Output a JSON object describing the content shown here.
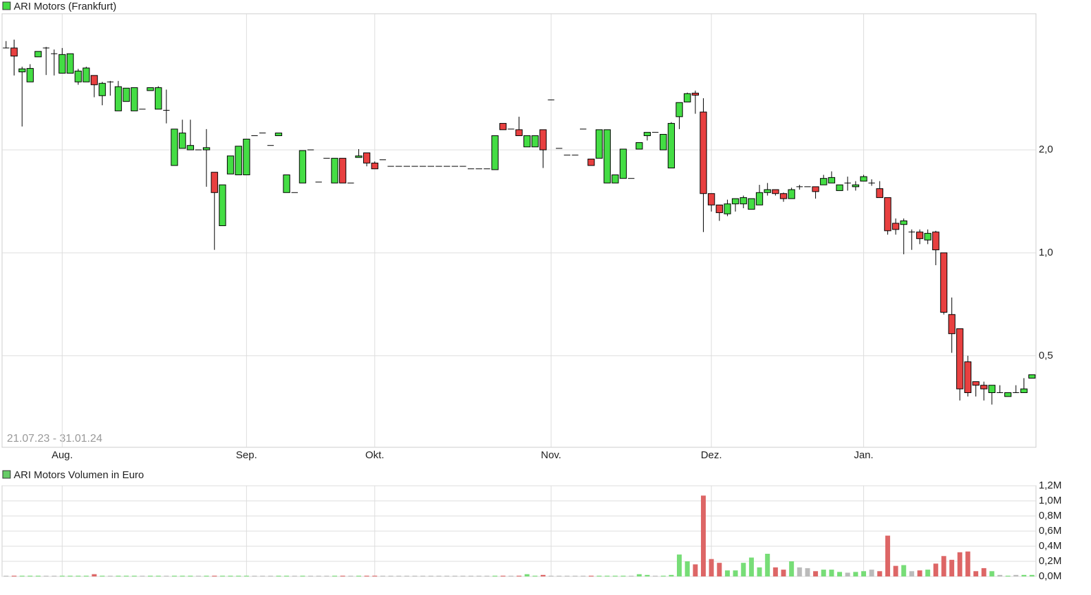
{
  "chart_data": [
    {
      "type": "candlestick",
      "title": "ARI Motors (Frankfurt)",
      "legend_color": "#44dd44",
      "annotation": "21.07.23 - 31.01.24",
      "up_color": "#44dd44",
      "down_color": "#e84040",
      "log_scale": true,
      "grid": true,
      "xlim": [
        -0.5,
        128.5
      ],
      "xticks": [
        {
          "value": 7,
          "label": "Aug."
        },
        {
          "value": 30,
          "label": "Sep."
        },
        {
          "value": 46,
          "label": "Okt."
        },
        {
          "value": 68,
          "label": "Nov."
        },
        {
          "value": 88,
          "label": "Dez."
        },
        {
          "value": 107,
          "label": "Jan."
        }
      ],
      "ylim": [
        0.27,
        5.0
      ],
      "yticks": [
        {
          "value": 0.5,
          "label": "0,5"
        },
        {
          "value": 1,
          "label": "1,0"
        },
        {
          "value": 2,
          "label": "2,0"
        }
      ],
      "open": [
        3.97,
        3.97,
        3.38,
        3.16,
        3.74,
        3.97,
        3.82,
        3.35,
        3.35,
        3.16,
        3.16,
        3.3,
        2.88,
        3.16,
        2.6,
        2.77,
        2.6,
        2.63,
        2.98,
        2.63,
        2.61,
        1.8,
        2.02,
        2.0,
        2.0,
        2.0,
        1.72,
        1.2,
        1.7,
        1.69,
        1.69,
        2.2,
        2.24,
        2.06,
        2.2,
        1.5,
        1.5,
        1.6,
        2.0,
        1.61,
        1.89,
        1.6,
        1.89,
        1.6,
        1.9,
        1.96,
        1.83,
        1.87,
        1.79,
        1.79,
        1.79,
        1.79,
        1.79,
        1.79,
        1.79,
        1.79,
        1.79,
        1.79,
        1.76,
        1.76,
        1.76,
        1.75,
        2.39,
        2.3,
        2.29,
        2.04,
        2.04,
        2.29,
        2.8,
        2.02,
        1.93,
        1.93,
        2.3,
        1.88,
        1.89,
        1.6,
        1.6,
        1.65,
        1.65,
        2.01,
        2.2,
        2.25,
        2.0,
        1.77,
        2.5,
        2.76,
        2.93,
        2.58,
        1.49,
        1.38,
        1.3,
        1.39,
        1.39,
        1.34,
        1.38,
        1.5,
        1.53,
        1.49,
        1.44,
        1.56,
        1.56,
        1.56,
        1.58,
        1.6,
        1.52,
        1.6,
        1.56,
        1.62,
        1.6,
        1.54,
        1.45,
        1.22,
        1.21,
        1.15,
        1.15,
        1.09,
        1.15,
        1.0,
        0.66,
        0.6,
        0.48,
        0.42,
        0.41,
        0.39,
        0.39,
        0.38,
        0.39,
        0.39,
        0.43
      ],
      "high": [
        4.16,
        4.2,
        3.5,
        3.56,
        3.88,
        4.0,
        3.93,
        3.97,
        3.82,
        3.45,
        3.5,
        3.3,
        3.16,
        3.18,
        3.18,
        3.03,
        3.04,
        2.63,
        3.04,
        3.07,
        3.0,
        2.3,
        2.45,
        2.45,
        2.0,
        2.3,
        1.72,
        1.58,
        1.92,
        2.05,
        2.15,
        2.2,
        2.24,
        2.06,
        2.24,
        1.69,
        1.5,
        1.99,
        2.0,
        1.61,
        1.89,
        1.89,
        1.89,
        1.6,
        2.01,
        1.96,
        1.85,
        1.87,
        1.79,
        1.79,
        1.79,
        1.79,
        1.79,
        1.79,
        1.79,
        1.79,
        1.79,
        1.79,
        1.76,
        1.76,
        1.76,
        2.2,
        2.39,
        2.3,
        2.5,
        2.2,
        2.2,
        2.29,
        2.8,
        2.02,
        1.93,
        1.93,
        2.3,
        1.88,
        2.29,
        2.29,
        1.69,
        2.01,
        1.65,
        2.1,
        2.25,
        2.25,
        2.22,
        2.41,
        2.75,
        2.94,
        2.98,
        2.83,
        1.49,
        1.38,
        1.43,
        1.44,
        1.47,
        1.44,
        1.58,
        1.6,
        1.53,
        1.5,
        1.55,
        1.58,
        1.56,
        1.56,
        1.69,
        1.73,
        1.58,
        1.67,
        1.62,
        1.69,
        1.64,
        1.62,
        1.45,
        1.26,
        1.26,
        1.17,
        1.17,
        1.17,
        1.16,
        1.0,
        0.74,
        0.6,
        0.5,
        0.42,
        0.42,
        0.41,
        0.41,
        0.39,
        0.41,
        0.43,
        0.44
      ],
      "low": [
        3.97,
        3.3,
        2.34,
        3.16,
        3.74,
        3.31,
        3.3,
        3.35,
        3.35,
        3.1,
        3.16,
        2.85,
        2.7,
        2.88,
        2.6,
        2.77,
        2.6,
        2.63,
        2.98,
        2.63,
        2.39,
        1.8,
        2.02,
        2.0,
        2.0,
        1.56,
        1.02,
        1.2,
        1.7,
        1.69,
        1.69,
        2.2,
        2.24,
        2.06,
        2.2,
        1.5,
        1.5,
        1.6,
        2.0,
        1.61,
        1.89,
        1.6,
        1.6,
        1.6,
        1.9,
        1.79,
        1.76,
        1.87,
        1.79,
        1.79,
        1.79,
        1.79,
        1.79,
        1.79,
        1.79,
        1.79,
        1.79,
        1.79,
        1.76,
        1.76,
        1.76,
        1.75,
        2.29,
        2.3,
        2.2,
        2.04,
        2.04,
        1.77,
        2.8,
        2.02,
        1.93,
        1.93,
        2.3,
        1.8,
        1.89,
        1.6,
        1.6,
        1.65,
        1.65,
        2.01,
        2.13,
        2.25,
        2.0,
        1.77,
        2.3,
        2.76,
        2.55,
        1.15,
        1.32,
        1.24,
        1.28,
        1.32,
        1.35,
        1.34,
        1.38,
        1.47,
        1.47,
        1.41,
        1.44,
        1.53,
        1.56,
        1.44,
        1.58,
        1.6,
        1.52,
        1.52,
        1.52,
        1.62,
        1.57,
        1.45,
        1.13,
        1.13,
        0.99,
        1.02,
        1.06,
        1.06,
        0.92,
        0.66,
        0.51,
        0.37,
        0.38,
        0.38,
        0.37,
        0.36,
        0.39,
        0.38,
        0.39,
        0.39,
        0.43
      ],
      "close": [
        3.97,
        3.76,
        3.45,
        3.46,
        3.88,
        3.97,
        3.82,
        3.8,
        3.82,
        3.4,
        3.47,
        3.1,
        3.13,
        3.16,
        3.06,
        3.03,
        3.04,
        2.63,
        3.04,
        3.04,
        2.61,
        2.3,
        2.24,
        2.06,
        2.0,
        2.03,
        1.5,
        1.58,
        1.92,
        2.05,
        2.15,
        2.2,
        2.24,
        2.06,
        2.24,
        1.69,
        1.5,
        1.99,
        2.0,
        1.61,
        1.89,
        1.89,
        1.6,
        1.6,
        1.92,
        1.83,
        1.76,
        1.87,
        1.79,
        1.79,
        1.79,
        1.79,
        1.79,
        1.79,
        1.79,
        1.79,
        1.79,
        1.79,
        1.76,
        1.76,
        1.76,
        2.2,
        2.29,
        2.3,
        2.2,
        2.2,
        2.2,
        2.0,
        2.8,
        2.02,
        1.93,
        1.93,
        2.3,
        1.8,
        2.29,
        2.29,
        1.69,
        2.01,
        1.65,
        2.1,
        2.25,
        2.25,
        2.22,
        2.39,
        2.75,
        2.92,
        2.89,
        1.49,
        1.38,
        1.31,
        1.39,
        1.44,
        1.45,
        1.44,
        1.5,
        1.53,
        1.49,
        1.44,
        1.53,
        1.56,
        1.56,
        1.51,
        1.65,
        1.66,
        1.58,
        1.6,
        1.58,
        1.67,
        1.6,
        1.45,
        1.16,
        1.17,
        1.24,
        1.15,
        1.1,
        1.14,
        1.02,
        0.67,
        0.58,
        0.4,
        0.39,
        0.41,
        0.4,
        0.41,
        0.39,
        0.39,
        0.39,
        0.4,
        0.44
      ]
    },
    {
      "type": "bar",
      "title": "ARI Motors Volumen in Euro",
      "legend_color": "#66cc66",
      "up_color": "#77dd77",
      "down_color": "#dd6666",
      "flat_color": "#bbbbbb",
      "grid": true,
      "ylim": [
        0,
        1200000
      ],
      "yticks": [
        {
          "value": 0,
          "label": "0,0M"
        },
        {
          "value": 200000,
          "label": "0,2M"
        },
        {
          "value": 400000,
          "label": "0,4M"
        },
        {
          "value": 600000,
          "label": "0,6M"
        },
        {
          "value": 800000,
          "label": "0,8M"
        },
        {
          "value": 1000000,
          "label": "1,0M"
        },
        {
          "value": 1200000,
          "label": "1,2M"
        }
      ],
      "values": [
        10000,
        10000,
        10000,
        10000,
        10000,
        10000,
        10000,
        10000,
        10000,
        10000,
        10000,
        30000,
        10000,
        10000,
        10000,
        10000,
        10000,
        10000,
        10000,
        10000,
        10000,
        10000,
        10000,
        10000,
        10000,
        10000,
        10000,
        10000,
        10000,
        10000,
        10000,
        10000,
        10000,
        10000,
        10000,
        10000,
        10000,
        10000,
        10000,
        10000,
        10000,
        10000,
        10000,
        10000,
        10000,
        10000,
        10000,
        10000,
        10000,
        10000,
        10000,
        10000,
        10000,
        10000,
        10000,
        10000,
        10000,
        10000,
        10000,
        10000,
        10000,
        10000,
        10000,
        10000,
        10000,
        30000,
        10000,
        20000,
        10000,
        10000,
        10000,
        10000,
        10000,
        10000,
        10000,
        10000,
        10000,
        10000,
        10000,
        30000,
        20000,
        10000,
        10000,
        20000,
        290000,
        200000,
        160000,
        1070000,
        230000,
        180000,
        80000,
        80000,
        180000,
        250000,
        120000,
        300000,
        120000,
        90000,
        200000,
        120000,
        110000,
        70000,
        90000,
        90000,
        60000,
        50000,
        60000,
        70000,
        90000,
        70000,
        540000,
        140000,
        150000,
        70000,
        80000,
        90000,
        170000,
        270000,
        220000,
        320000,
        330000,
        70000,
        110000,
        70000,
        20000,
        10000,
        20000,
        20000,
        20000
      ]
    }
  ]
}
